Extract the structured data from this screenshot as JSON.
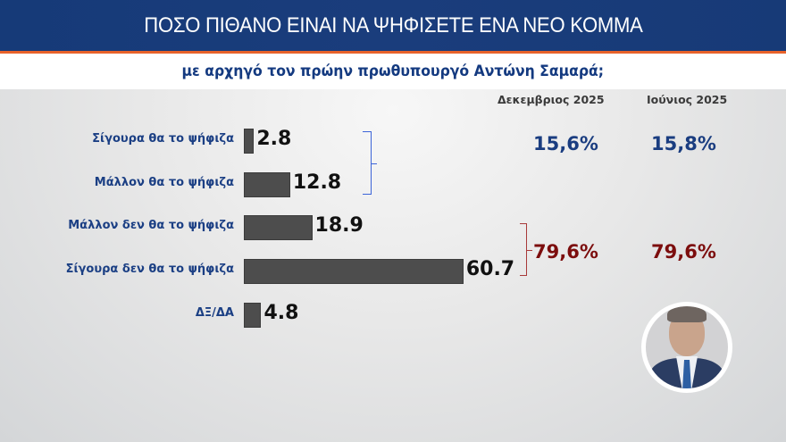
{
  "header": {
    "title": "ΠΟΣΟ ΠΙΘΑΝΟ ΕΙΝΑΙ ΝΑ ΨΗΦΙΣΕΤΕ ΕΝΑ ΝΕΟ ΚΟΜΜΑ",
    "subtitle": "με αρχηγό τον πρώην πρωθυπουργό Αντώνη Σαμαρά;"
  },
  "columns": {
    "current": "Δεκεμβριος 2025",
    "previous": "Ιούνιος 2025"
  },
  "totals": {
    "positive": {
      "current": "15,6%",
      "previous": "15,8%",
      "color": "#1a3d80"
    },
    "negative": {
      "current": "79,6%",
      "previous": "79,6%",
      "color": "#7c0d0d"
    }
  },
  "colors": {
    "header_bg": "#173a77",
    "accent_line": "#e8622a",
    "bar": "#4d4d4d",
    "label": "#1b3f84",
    "bracket_blue": "#3c64d8",
    "bracket_red": "#a83a3a"
  },
  "portrait": {
    "alt": "Αντώνης Σαμαράς"
  },
  "chart_data": {
    "type": "bar",
    "orientation": "horizontal",
    "title": "ΠΟΣΟ ΠΙΘΑΝΟ ΕΙΝΑΙ ΝΑ ΨΗΦΙΣΕΤΕ ΕΝΑ ΝΕΟ ΚΟΜΜΑ",
    "subtitle": "με αρχηγό τον πρώην πρωθυπουργό Αντώνη Σαμαρά;",
    "categories": [
      "Σίγουρα θα το ψήφιζα",
      "Μάλλον θα το ψήφιζα",
      "Μάλλον δεν θα το ψήφιζα",
      "Σίγουρα δεν θα το ψήφιζα",
      "ΔΞ/ΔΑ"
    ],
    "values": [
      2.8,
      12.8,
      18.9,
      60.7,
      4.8
    ],
    "value_labels": [
      "2.8",
      "12.8",
      "18.9",
      "60.7",
      "4.8"
    ],
    "xlabel": "",
    "ylabel": "",
    "xlim": [
      0,
      65
    ],
    "grid": false,
    "legend": null,
    "annotations": [
      {
        "group": [
          "Σίγουρα θα το ψήφιζα",
          "Μάλλον θα το ψήφιζα"
        ],
        "Δεκεμβριος 2025": "15,6%",
        "Ιούνιος 2025": "15,8%"
      },
      {
        "group": [
          "Μάλλον δεν θα το ψήφιζα",
          "Σίγουρα δεν θα το ψήφιζα"
        ],
        "Δεκεμβριος 2025": "79,6%",
        "Ιούνιος 2025": "79,6%"
      }
    ]
  }
}
